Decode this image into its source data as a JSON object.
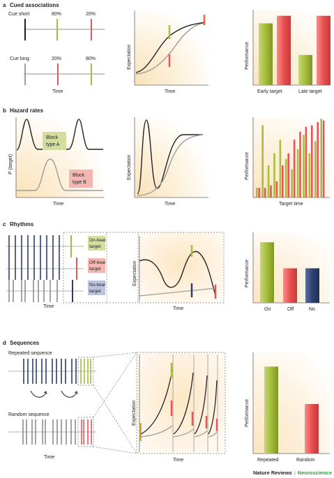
{
  "sections": {
    "a": {
      "letter": "a",
      "title": "Cued associations",
      "cue_short": "Cue short",
      "cue_long": "Cue long",
      "short_p1": "80%",
      "short_p2": "20%",
      "long_p1": "20%",
      "long_p2": "80%",
      "time": "Time",
      "mid_ylabel": "Expectation",
      "mid_xlabel": "Time",
      "perf_ylabel": "Performance",
      "early_target": "Early target",
      "late_target": "Late target"
    },
    "b": {
      "letter": "b",
      "title": "Hazard rates",
      "ylabel": "P (target)",
      "block_a": "Block type A",
      "block_b": "Block type B",
      "time": "Time",
      "mid_ylabel": "Expectation",
      "mid_xlabel": "Time",
      "perf_ylabel": "Performance",
      "perf_xlabel": "Target time"
    },
    "c": {
      "letter": "c",
      "title": "Rhythms",
      "on_beat": "On-beat target",
      "off_beat": "Off-beat target",
      "no_beat": "No-beat target",
      "time": "Time",
      "mid_ylabel": "Expectation",
      "mid_xlabel": "Time",
      "perf_ylabel": "Performance",
      "cat_on": "On",
      "cat_off": "Off",
      "cat_no": "No"
    },
    "d": {
      "letter": "d",
      "title": "Sequences",
      "repeated_seq": "Repeated sequence",
      "random_seq": "Random sequence",
      "time": "Time",
      "mid_ylabel": "Expectation",
      "mid_xlabel": "Time",
      "perf_ylabel": "Performance",
      "cat_repeated": "Repeated",
      "cat_random": "Random"
    }
  },
  "footer": {
    "journal": "Nature Reviews",
    "separator": "|",
    "subject": "Neuroscience"
  },
  "colors": {
    "green": "#a7be3c",
    "red": "#ea5457",
    "navy": "#2c3e66",
    "gray": "#8c9089",
    "subject": "#2e9f3e"
  },
  "chart_data": [
    {
      "type": "bar",
      "panel": "a",
      "categories": [
        "Early target",
        "Late target"
      ],
      "series": [
        {
          "values": [
            0.82,
            0.4
          ]
        },
        {
          "values": [
            0.92,
            0.92
          ]
        }
      ],
      "ylabel": "Performance"
    },
    {
      "type": "bar",
      "panel": "b",
      "xlabel": "Target time",
      "ylabel": "Performance",
      "series": [
        {
          "values": [
            0.12,
            0.9,
            0.4,
            0.55,
            0.72,
            0.48,
            0.35,
            0.6,
            0.78,
            0.55,
            0.7,
            0.98
          ]
        },
        {
          "values": [
            0.12,
            0.12,
            0.15,
            0.2,
            0.4,
            0.55,
            0.72,
            0.82,
            0.88,
            0.9,
            0.94,
            0.96
          ]
        }
      ]
    },
    {
      "type": "bar",
      "panel": "c",
      "categories": [
        "On",
        "Off",
        "No"
      ],
      "values": [
        0.86,
        0.49,
        0.49
      ],
      "ylabel": "Performance"
    },
    {
      "type": "bar",
      "panel": "d",
      "categories": [
        "Repeated",
        "Random"
      ],
      "values": [
        0.86,
        0.49
      ],
      "ylabel": "Performance"
    }
  ]
}
